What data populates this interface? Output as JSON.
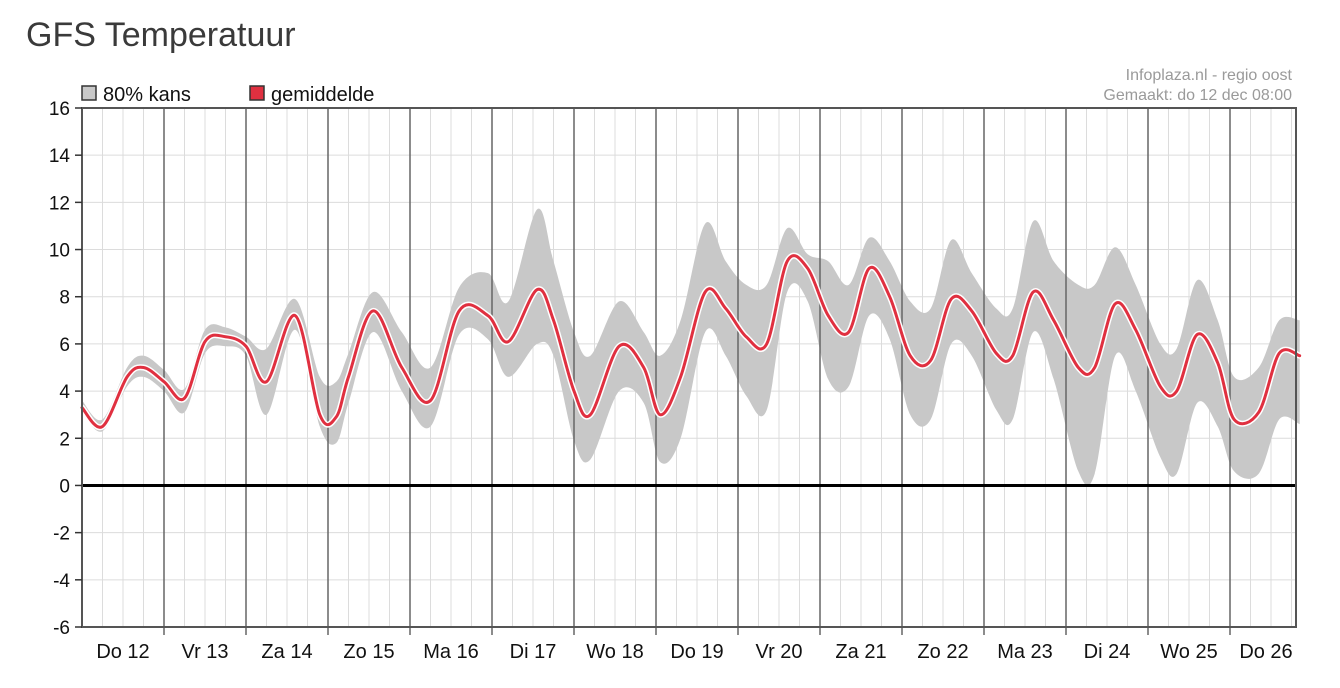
{
  "page_title": "GFS Temperatuur",
  "source_line1": "Infoplaza.nl - regio oost",
  "source_line2": "Gemaakt: do 12 dec 08:00",
  "colors": {
    "band": "#c8c8c8",
    "mean": "#e03040",
    "zero_line": "#000000"
  },
  "chart_data": {
    "type": "area",
    "title": "GFS Temperatuur",
    "xlabel": "",
    "ylabel": "",
    "ylim": [
      -6,
      16
    ],
    "yticks": [
      -6,
      -4,
      -2,
      0,
      2,
      4,
      6,
      8,
      10,
      12,
      14,
      16
    ],
    "grid": true,
    "legend": {
      "placement": "top-left",
      "entries": [
        "80% kans",
        "gemiddelde"
      ]
    },
    "x_unit": "days since Do 12 00:00",
    "x_range": [
      0,
      14.85
    ],
    "categories": [
      "Do 12",
      "Vr 13",
      "Za 14",
      "Zo 15",
      "Ma 16",
      "Di 17",
      "Wo 18",
      "Do 19",
      "Vr 20",
      "Za 21",
      "Zo 22",
      "Ma 23",
      "Di 24",
      "Wo 25",
      "Do 26"
    ],
    "series": [
      {
        "name": "gemiddelde",
        "x": [
          0,
          0.25,
          0.55,
          0.75,
          1.0,
          1.25,
          1.5,
          1.75,
          2.0,
          2.25,
          2.6,
          2.9,
          3.1,
          3.25,
          3.55,
          3.9,
          4.25,
          4.6,
          4.95,
          5.2,
          5.55,
          5.75,
          6.0,
          6.2,
          6.55,
          6.85,
          7.05,
          7.3,
          7.6,
          7.85,
          8.1,
          8.35,
          8.6,
          8.85,
          9.1,
          9.35,
          9.6,
          9.85,
          10.1,
          10.35,
          10.6,
          10.85,
          11.15,
          11.35,
          11.6,
          11.85,
          12.15,
          12.35,
          12.6,
          12.85,
          13.15,
          13.35,
          13.6,
          13.85,
          14.05,
          14.35,
          14.6,
          14.85
        ],
        "values": [
          3.3,
          2.5,
          4.6,
          5.0,
          4.4,
          3.7,
          6.1,
          6.3,
          5.9,
          4.4,
          7.2,
          3.0,
          2.9,
          4.6,
          7.4,
          5.0,
          3.6,
          7.4,
          7.2,
          6.1,
          8.3,
          7.0,
          4.0,
          3.0,
          5.9,
          5.0,
          3.0,
          4.6,
          8.2,
          7.5,
          6.3,
          6.0,
          9.5,
          9.2,
          7.2,
          6.5,
          9.2,
          8.0,
          5.5,
          5.3,
          7.9,
          7.4,
          5.6,
          5.5,
          8.2,
          7.0,
          5.0,
          5.0,
          7.7,
          6.6,
          4.2,
          4.0,
          6.4,
          5.2,
          2.8,
          3.1,
          5.6,
          5.5
        ]
      },
      {
        "name": "80% kans",
        "x": [
          0,
          0.25,
          0.55,
          0.75,
          1.0,
          1.25,
          1.5,
          1.75,
          2.0,
          2.25,
          2.6,
          2.9,
          3.1,
          3.25,
          3.55,
          3.9,
          4.25,
          4.6,
          4.95,
          5.2,
          5.55,
          5.75,
          6.0,
          6.2,
          6.55,
          6.85,
          7.05,
          7.3,
          7.6,
          7.85,
          8.1,
          8.35,
          8.6,
          8.85,
          9.1,
          9.35,
          9.6,
          9.85,
          10.1,
          10.35,
          10.6,
          10.85,
          11.15,
          11.35,
          11.6,
          11.85,
          12.15,
          12.35,
          12.6,
          12.85,
          13.15,
          13.35,
          13.6,
          13.85,
          14.05,
          14.35,
          14.6,
          14.85
        ],
        "low": [
          3.1,
          2.3,
          4.2,
          4.6,
          4.0,
          3.1,
          5.6,
          5.9,
          5.5,
          3.0,
          6.6,
          2.5,
          1.8,
          3.5,
          6.5,
          4.0,
          2.5,
          6.4,
          6.2,
          4.6,
          6.0,
          5.5,
          1.9,
          1.1,
          4.0,
          3.5,
          1.0,
          2.0,
          6.5,
          5.5,
          3.8,
          3.2,
          8.2,
          7.8,
          4.5,
          4.2,
          7.2,
          6.2,
          3.0,
          2.8,
          6.0,
          5.5,
          3.2,
          2.8,
          6.5,
          4.5,
          0.6,
          0.5,
          5.5,
          4.0,
          1.2,
          0.5,
          3.5,
          2.5,
          0.6,
          0.5,
          2.8,
          2.6
        ],
        "high": [
          3.6,
          2.8,
          5.0,
          5.5,
          4.9,
          4.1,
          6.6,
          6.7,
          6.3,
          5.8,
          7.9,
          4.6,
          4.4,
          5.6,
          8.2,
          6.5,
          5.0,
          8.4,
          9.0,
          7.8,
          11.7,
          9.5,
          6.5,
          5.5,
          7.8,
          6.5,
          5.5,
          7.0,
          11.1,
          9.5,
          8.5,
          8.5,
          10.9,
          9.8,
          9.5,
          8.5,
          10.5,
          9.5,
          7.8,
          7.5,
          10.4,
          9.0,
          7.5,
          7.5,
          11.2,
          9.5,
          8.5,
          8.5,
          10.1,
          8.5,
          6.0,
          5.8,
          8.7,
          7.0,
          4.6,
          5.0,
          7.0,
          7.0
        ]
      }
    ]
  }
}
